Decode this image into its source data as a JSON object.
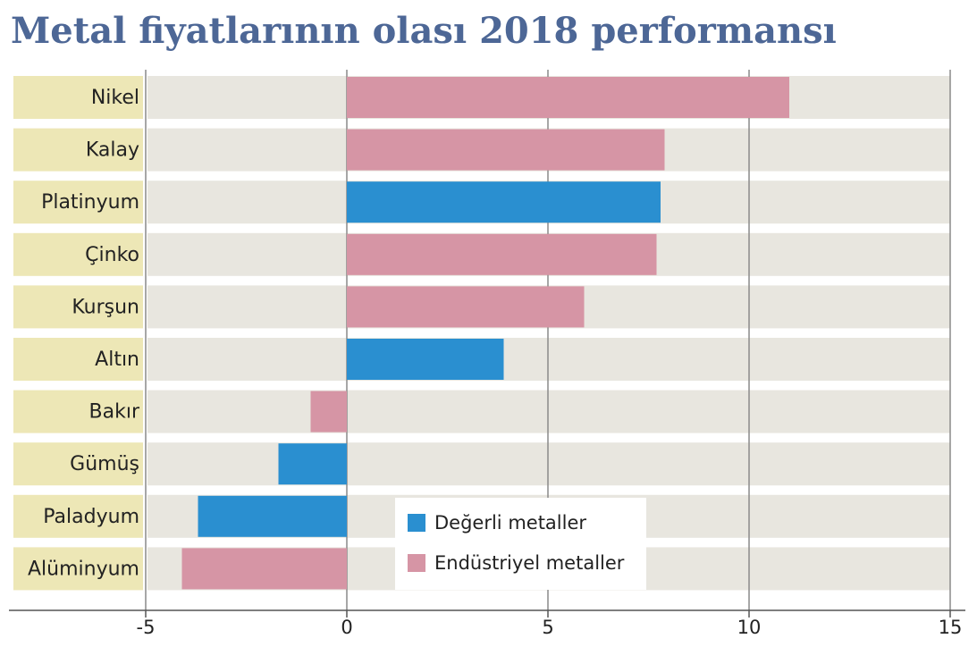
{
  "chart_data": {
    "type": "hbar",
    "title": "Metal fiyatlarının olası 2018 performansı",
    "categories": [
      "Nikel",
      "Kalay",
      "Platinyum",
      "Çinko",
      "Kurşun",
      "Altın",
      "Bakır",
      "Gümüş",
      "Paladyum",
      "Alüminyum"
    ],
    "series": [
      {
        "name": "Değerli metaller",
        "color": "#2a8fd0",
        "values": [
          null,
          null,
          7.8,
          null,
          null,
          3.9,
          null,
          -1.7,
          -3.7,
          null
        ]
      },
      {
        "name": "Endüstriyel metaller",
        "color": "#d695a5",
        "values": [
          11.0,
          7.9,
          null,
          7.7,
          5.9,
          null,
          -0.9,
          null,
          null,
          -4.1
        ]
      }
    ],
    "xlim": [
      -5,
      15
    ],
    "xticks": [
      -5,
      0,
      5,
      10,
      15
    ],
    "grid": true
  }
}
